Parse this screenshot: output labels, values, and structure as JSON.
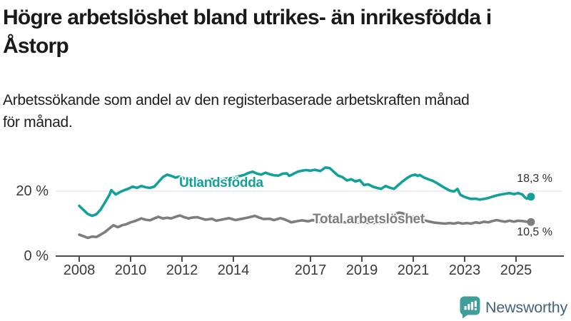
{
  "header": {
    "title_line1": "Högre arbetslöshet bland utrikes- än inrikesfödda i",
    "title_line2": "Åstorp",
    "subtitle_line1": "Arbetssökande som andel av den registerbaserade arbetskraften månad",
    "subtitle_line2": "för månad."
  },
  "chart_data": {
    "type": "line",
    "title": "Högre arbetslöshet bland utrikes- än inrikesfödda i Åstorp",
    "subtitle": "Arbetssökande som andel av den registerbaserade arbetskraften månad för månad.",
    "x_unit": "year (monthly data)",
    "xlim": [
      2007.1,
      2026.9
    ],
    "ylim": [
      0,
      30.5
    ],
    "grid_on": true,
    "grid_values": [
      20
    ],
    "grid_color": "#dcdcdc",
    "axis_color": "#4b4b4b",
    "x_ticks": [
      2008,
      2010,
      2012,
      2014,
      2017,
      2019,
      2021,
      2023,
      2025
    ],
    "y_ticks": [
      {
        "value": 0,
        "label": "0 %"
      },
      {
        "value": 20,
        "label": "20 %"
      }
    ],
    "series": [
      {
        "id": "utlandsfodda",
        "name": "Utlandsfödda",
        "color": "#12a19a",
        "end_label": "18,3 %",
        "end_value": 18.3,
        "points": [
          [
            2008.0,
            15.5
          ],
          [
            2008.17,
            14.2
          ],
          [
            2008.33,
            13.0
          ],
          [
            2008.5,
            12.4
          ],
          [
            2008.67,
            12.9
          ],
          [
            2008.83,
            14.3
          ],
          [
            2009.0,
            16.5
          ],
          [
            2009.17,
            18.8
          ],
          [
            2009.25,
            20.3
          ],
          [
            2009.42,
            19.0
          ],
          [
            2009.58,
            19.7
          ],
          [
            2009.75,
            20.3
          ],
          [
            2009.92,
            20.8
          ],
          [
            2010.08,
            21.4
          ],
          [
            2010.25,
            21.0
          ],
          [
            2010.42,
            21.6
          ],
          [
            2010.58,
            21.2
          ],
          [
            2010.75,
            21.0
          ],
          [
            2010.92,
            21.4
          ],
          [
            2011.08,
            22.8
          ],
          [
            2011.25,
            24.3
          ],
          [
            2011.42,
            25.1
          ],
          [
            2011.58,
            24.7
          ],
          [
            2011.75,
            24.2
          ],
          [
            2011.92,
            24.5
          ],
          [
            2012.08,
            23.9
          ],
          [
            2012.25,
            24.1
          ],
          [
            2012.42,
            23.4
          ],
          [
            2012.58,
            23.7
          ],
          [
            2012.75,
            23.0
          ],
          [
            2012.92,
            23.3
          ],
          [
            2013.17,
            23.7
          ],
          [
            2013.42,
            23.4
          ],
          [
            2013.67,
            23.8
          ],
          [
            2013.92,
            24.1
          ],
          [
            2014.17,
            24.5
          ],
          [
            2014.42,
            25.0
          ],
          [
            2014.58,
            25.6
          ],
          [
            2014.75,
            26.0
          ],
          [
            2014.92,
            25.4
          ],
          [
            2015.08,
            25.1
          ],
          [
            2015.25,
            25.7
          ],
          [
            2015.42,
            25.2
          ],
          [
            2015.58,
            24.9
          ],
          [
            2015.75,
            24.8
          ],
          [
            2015.92,
            25.4
          ],
          [
            2016.08,
            25.5
          ],
          [
            2016.17,
            24.7
          ],
          [
            2016.33,
            25.3
          ],
          [
            2016.5,
            26.0
          ],
          [
            2016.67,
            26.3
          ],
          [
            2016.83,
            26.5
          ],
          [
            2017.0,
            26.3
          ],
          [
            2017.17,
            26.6
          ],
          [
            2017.38,
            26.2
          ],
          [
            2017.58,
            27.3
          ],
          [
            2017.75,
            27.1
          ],
          [
            2017.92,
            25.9
          ],
          [
            2018.08,
            24.8
          ],
          [
            2018.25,
            24.3
          ],
          [
            2018.42,
            23.3
          ],
          [
            2018.58,
            23.7
          ],
          [
            2018.75,
            23.0
          ],
          [
            2018.92,
            23.4
          ],
          [
            2019.08,
            21.9
          ],
          [
            2019.25,
            22.1
          ],
          [
            2019.42,
            21.4
          ],
          [
            2019.58,
            21.0
          ],
          [
            2019.75,
            20.7
          ],
          [
            2019.92,
            21.6
          ],
          [
            2020.08,
            21.1
          ],
          [
            2020.25,
            20.7
          ],
          [
            2020.42,
            21.9
          ],
          [
            2020.58,
            23.0
          ],
          [
            2020.75,
            24.0
          ],
          [
            2020.92,
            24.8
          ],
          [
            2021.08,
            25.1
          ],
          [
            2021.17,
            24.7
          ],
          [
            2021.25,
            25.0
          ],
          [
            2021.42,
            24.2
          ],
          [
            2021.58,
            23.7
          ],
          [
            2021.75,
            23.2
          ],
          [
            2021.92,
            22.5
          ],
          [
            2022.08,
            21.7
          ],
          [
            2022.25,
            20.9
          ],
          [
            2022.42,
            20.2
          ],
          [
            2022.58,
            19.9
          ],
          [
            2022.72,
            20.7
          ],
          [
            2022.83,
            18.9
          ],
          [
            2022.95,
            18.4
          ],
          [
            2023.08,
            18.0
          ],
          [
            2023.25,
            17.6
          ],
          [
            2023.42,
            17.7
          ],
          [
            2023.58,
            17.4
          ],
          [
            2023.75,
            17.6
          ],
          [
            2023.92,
            17.9
          ],
          [
            2024.08,
            18.3
          ],
          [
            2024.25,
            18.7
          ],
          [
            2024.42,
            19.0
          ],
          [
            2024.58,
            19.2
          ],
          [
            2024.75,
            19.4
          ],
          [
            2024.92,
            19.1
          ],
          [
            2025.08,
            19.4
          ],
          [
            2025.25,
            19.0
          ],
          [
            2025.33,
            18.2
          ],
          [
            2025.42,
            17.7
          ],
          [
            2025.5,
            18.0
          ],
          [
            2025.58,
            18.3
          ]
        ]
      },
      {
        "id": "total",
        "name": "Total arbetslöshet",
        "color": "#7d7d7d",
        "end_label": "10,5 %",
        "end_value": 10.5,
        "points": [
          [
            2008.0,
            6.6
          ],
          [
            2008.17,
            6.1
          ],
          [
            2008.33,
            5.6
          ],
          [
            2008.5,
            6.0
          ],
          [
            2008.67,
            5.9
          ],
          [
            2008.83,
            6.6
          ],
          [
            2009.0,
            7.4
          ],
          [
            2009.17,
            8.5
          ],
          [
            2009.33,
            9.5
          ],
          [
            2009.5,
            8.9
          ],
          [
            2009.67,
            9.5
          ],
          [
            2009.83,
            9.8
          ],
          [
            2010.0,
            10.4
          ],
          [
            2010.17,
            10.8
          ],
          [
            2010.42,
            11.6
          ],
          [
            2010.58,
            11.2
          ],
          [
            2010.75,
            11.0
          ],
          [
            2010.92,
            11.6
          ],
          [
            2011.08,
            12.1
          ],
          [
            2011.25,
            11.6
          ],
          [
            2011.42,
            11.8
          ],
          [
            2011.58,
            11.6
          ],
          [
            2011.75,
            12.1
          ],
          [
            2011.92,
            12.5
          ],
          [
            2012.08,
            12.0
          ],
          [
            2012.25,
            11.6
          ],
          [
            2012.42,
            11.9
          ],
          [
            2012.58,
            12.0
          ],
          [
            2012.75,
            11.6
          ],
          [
            2012.92,
            11.2
          ],
          [
            2013.17,
            11.5
          ],
          [
            2013.33,
            10.9
          ],
          [
            2013.58,
            11.3
          ],
          [
            2013.83,
            11.7
          ],
          [
            2014.08,
            11.1
          ],
          [
            2014.33,
            11.5
          ],
          [
            2014.58,
            11.9
          ],
          [
            2014.83,
            12.4
          ],
          [
            2015.0,
            11.9
          ],
          [
            2015.17,
            11.4
          ],
          [
            2015.42,
            11.5
          ],
          [
            2015.58,
            11.1
          ],
          [
            2015.83,
            11.7
          ],
          [
            2016.0,
            11.3
          ],
          [
            2016.25,
            10.4
          ],
          [
            2016.5,
            10.8
          ],
          [
            2016.67,
            11.0
          ],
          [
            2016.92,
            10.7
          ],
          [
            2017.08,
            11.1
          ],
          [
            2017.33,
            10.5
          ],
          [
            2017.58,
            10.9
          ],
          [
            2017.83,
            10.6
          ],
          [
            2018.08,
            10.8
          ],
          [
            2018.33,
            10.4
          ],
          [
            2018.58,
            10.6
          ],
          [
            2018.83,
            10.3
          ],
          [
            2019.08,
            10.4
          ],
          [
            2019.33,
            10.1
          ],
          [
            2019.58,
            10.3
          ],
          [
            2019.83,
            10.1
          ],
          [
            2020.0,
            10.6
          ],
          [
            2020.17,
            11.8
          ],
          [
            2020.33,
            13.1
          ],
          [
            2020.45,
            13.4
          ],
          [
            2020.58,
            13.2
          ],
          [
            2020.75,
            12.6
          ],
          [
            2020.92,
            12.2
          ],
          [
            2021.08,
            11.8
          ],
          [
            2021.33,
            11.2
          ],
          [
            2021.58,
            10.7
          ],
          [
            2021.83,
            10.3
          ],
          [
            2022.08,
            10.1
          ],
          [
            2022.25,
            10.0
          ],
          [
            2022.42,
            10.2
          ],
          [
            2022.58,
            10.0
          ],
          [
            2022.75,
            10.3
          ],
          [
            2022.92,
            10.0
          ],
          [
            2023.08,
            10.2
          ],
          [
            2023.25,
            10.0
          ],
          [
            2023.42,
            10.4
          ],
          [
            2023.58,
            10.2
          ],
          [
            2023.75,
            10.6
          ],
          [
            2023.92,
            10.4
          ],
          [
            2024.08,
            10.8
          ],
          [
            2024.25,
            11.1
          ],
          [
            2024.42,
            10.8
          ],
          [
            2024.58,
            10.6
          ],
          [
            2024.75,
            10.9
          ],
          [
            2024.92,
            10.6
          ],
          [
            2025.08,
            10.9
          ],
          [
            2025.25,
            10.8
          ],
          [
            2025.42,
            10.6
          ],
          [
            2025.5,
            10.4
          ],
          [
            2025.58,
            10.5
          ]
        ]
      }
    ],
    "legend_position": "inline-labels-on-lines"
  },
  "footer": {
    "brand": "Newsworthy",
    "brand_text_color": "#45617c",
    "brand_icon_color": "#3f9e99"
  }
}
